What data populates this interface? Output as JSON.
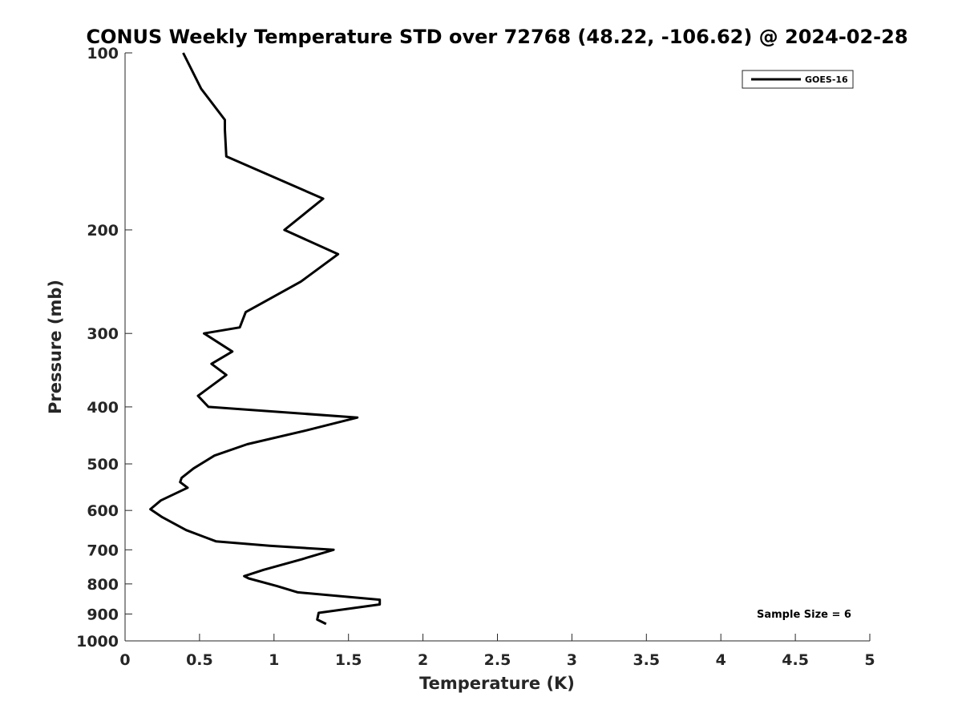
{
  "chart_data": {
    "type": "line",
    "title": "CONUS Weekly Temperature STD over 72768 (48.22, -106.62) @ 2024-02-28",
    "xlabel": "Temperature (K)",
    "ylabel": "Pressure (mb)",
    "xlim": [
      0,
      5
    ],
    "ylim": [
      100,
      1000
    ],
    "y_scale": "log",
    "y_reversed": true,
    "x_ticks": [
      "0",
      "0.5",
      "1",
      "1.5",
      "2",
      "2.5",
      "3",
      "3.5",
      "4",
      "4.5",
      "5"
    ],
    "y_ticks": [
      "100",
      "200",
      "300",
      "400",
      "500",
      "600",
      "700",
      "800",
      "900",
      "1000"
    ],
    "grid": false,
    "legend_position": "top-right",
    "series": [
      {
        "name": "GOES-16",
        "color": "#000000",
        "x": [
          0.39,
          0.51,
          0.67,
          0.67,
          0.68,
          1.33,
          1.07,
          1.43,
          1.18,
          0.81,
          0.77,
          0.53,
          0.72,
          0.58,
          0.68,
          0.49,
          0.56,
          1.56,
          1.21,
          0.82,
          0.6,
          0.46,
          0.38,
          0.37,
          0.42,
          0.24,
          0.17,
          0.25,
          0.41,
          0.61,
          0.97,
          1.4,
          1.19,
          0.93,
          0.8,
          0.83,
          1.02,
          1.16,
          1.71,
          1.71,
          1.3,
          1.29,
          1.35
        ],
        "y": [
          100,
          115,
          130,
          135,
          150,
          177,
          200,
          220,
          245,
          276,
          293,
          300,
          322,
          338,
          353,
          383,
          400,
          417,
          439,
          463,
          484,
          509,
          528,
          537,
          549,
          577,
          597,
          616,
          648,
          677,
          689,
          700,
          726,
          757,
          776,
          783,
          807,
          827,
          851,
          867,
          896,
          920,
          936
        ]
      }
    ],
    "annotation": "Sample Size = 6"
  }
}
